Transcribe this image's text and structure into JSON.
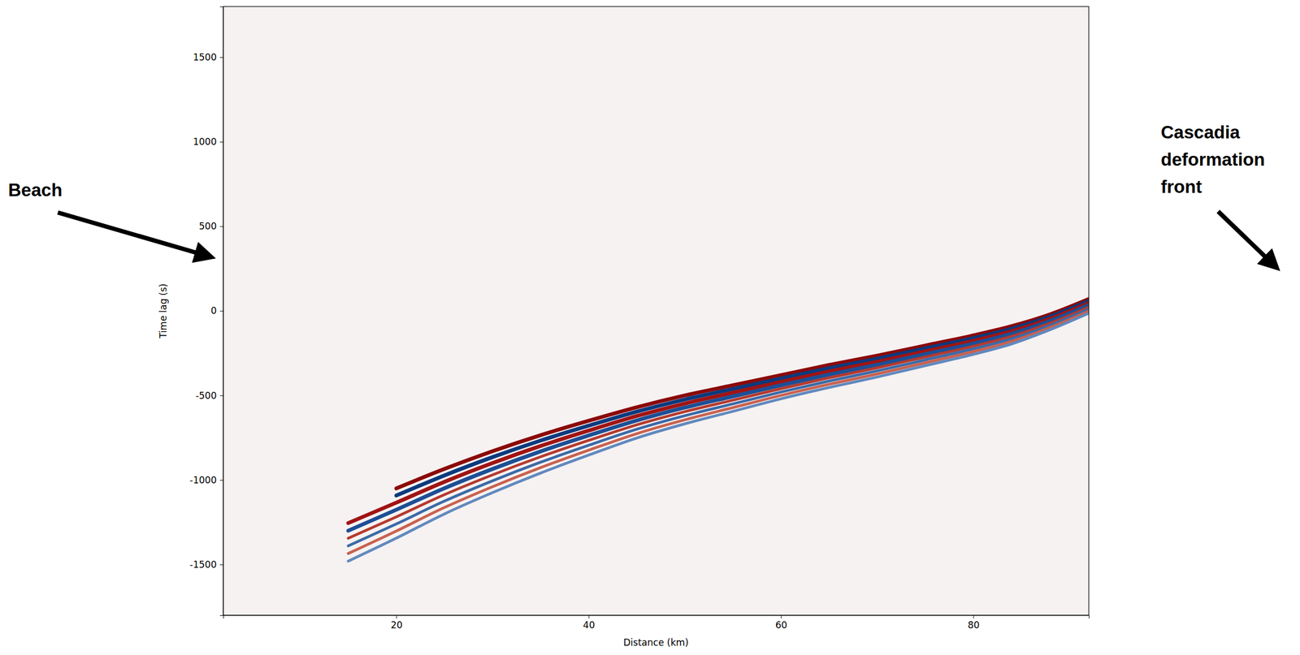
{
  "chart_data": {
    "type": "line",
    "xlabel": "Distance (km)",
    "ylabel": "Time lag (s)",
    "x": [
      15,
      20,
      25,
      30,
      35,
      40,
      45,
      50,
      55,
      60,
      65,
      70,
      75,
      80,
      84,
      88,
      92
    ],
    "xlim": [
      2,
      92
    ],
    "ylim": [
      -1800,
      1800
    ],
    "xticks": [
      20,
      40,
      60,
      80
    ],
    "yticks": [
      -1500,
      -1000,
      -500,
      0,
      500,
      1000,
      1500
    ],
    "grid": false,
    "series": [
      {
        "color": "#8b0a0a",
        "values": [
          null,
          -1050,
          -935,
          -830,
          -735,
          -650,
          -570,
          -500,
          -440,
          -380,
          -320,
          -265,
          -205,
          -145,
          -90,
          -20,
          70
        ]
      },
      {
        "color": "#0b3a7e",
        "values": [
          null,
          -1092,
          -973,
          -865,
          -767,
          -679,
          -596,
          -524,
          -462,
          -400,
          -339,
          -283,
          -222,
          -161,
          -105,
          -33,
          58
        ]
      },
      {
        "color": "#a01414",
        "values": [
          -1255,
          -1134,
          -1011,
          -900,
          -799,
          -708,
          -622,
          -548,
          -484,
          -420,
          -358,
          -301,
          -239,
          -177,
          -120,
          -46,
          46
        ]
      },
      {
        "color": "#1c4f96",
        "values": [
          -1300,
          -1176,
          -1049,
          -935,
          -831,
          -737,
          -648,
          -572,
          -506,
          -440,
          -377,
          -319,
          -256,
          -193,
          -135,
          -59,
          34
        ]
      },
      {
        "color": "#b53a2e",
        "values": [
          -1345,
          -1218,
          -1087,
          -970,
          -863,
          -766,
          -674,
          -596,
          -528,
          -460,
          -396,
          -337,
          -273,
          -209,
          -150,
          -72,
          22
        ]
      },
      {
        "color": "#3b6aa8",
        "values": [
          -1390,
          -1260,
          -1125,
          -1005,
          -895,
          -795,
          -700,
          -620,
          -550,
          -480,
          -415,
          -355,
          -290,
          -225,
          -165,
          -85,
          10
        ]
      },
      {
        "color": "#c9614f",
        "values": [
          -1435,
          -1302,
          -1163,
          -1040,
          -927,
          -824,
          -726,
          -644,
          -572,
          -500,
          -434,
          -373,
          -307,
          -241,
          -180,
          -98,
          -2
        ]
      },
      {
        "color": "#6189bf",
        "values": [
          -1480,
          -1344,
          -1201,
          -1075,
          -959,
          -853,
          -752,
          -668,
          -594,
          -520,
          -453,
          -391,
          -324,
          -257,
          -195,
          -111,
          -14
        ]
      }
    ],
    "annotations": [
      {
        "text": "Beach"
      },
      {
        "text": "Cascadia deformation front"
      }
    ]
  }
}
